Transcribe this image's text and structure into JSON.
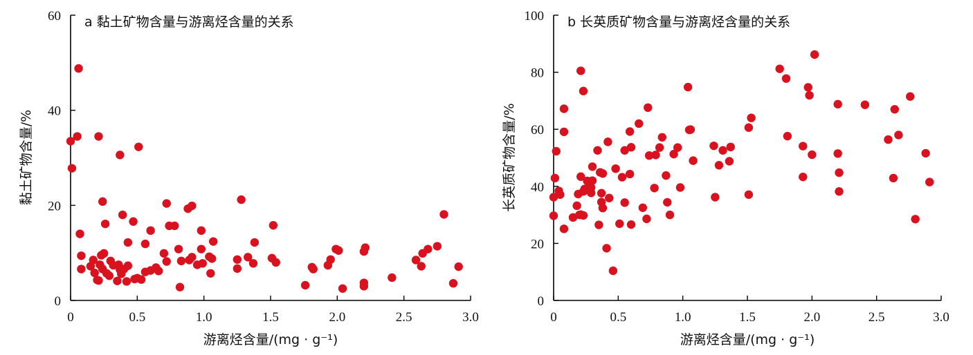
{
  "chart_data": [
    {
      "type": "scatter",
      "title": "a 黏土矿物含量与游离烃含量的关系",
      "xlabel": "游离烃含量/(mg · g⁻¹)",
      "ylabel": "黏土矿物含量/%",
      "xlim": [
        0,
        3.0
      ],
      "ylim": [
        0,
        60
      ],
      "xticks": [
        "0",
        "0.5",
        "1.0",
        "1.5",
        "2.0",
        "2.5",
        "3.0"
      ],
      "xtick_values": [
        0,
        0.5,
        1.0,
        1.5,
        2.0,
        2.5,
        3.0
      ],
      "yticks": [
        "0",
        "20",
        "40",
        "60"
      ],
      "ytick_values": [
        0,
        20,
        40,
        60
      ],
      "color": "#d9121f",
      "points": [
        [
          0.06,
          48.8
        ],
        [
          0.05,
          34.5
        ],
        [
          0.21,
          34.5
        ],
        [
          0.0,
          33.5
        ],
        [
          0.51,
          32.3
        ],
        [
          0.37,
          30.6
        ],
        [
          0.01,
          27.8
        ],
        [
          0.24,
          20.8
        ],
        [
          0.72,
          20.4
        ],
        [
          0.88,
          19.3
        ],
        [
          0.91,
          19.9
        ],
        [
          1.28,
          21.2
        ],
        [
          2.8,
          18.1
        ],
        [
          0.39,
          18.0
        ],
        [
          0.47,
          16.6
        ],
        [
          0.26,
          16.1
        ],
        [
          0.74,
          15.7
        ],
        [
          0.78,
          15.7
        ],
        [
          1.52,
          15.8
        ],
        [
          0.6,
          14.7
        ],
        [
          0.98,
          14.7
        ],
        [
          0.07,
          14.0
        ],
        [
          1.07,
          12.4
        ],
        [
          0.43,
          12.2
        ],
        [
          0.56,
          11.9
        ],
        [
          1.38,
          12.2
        ],
        [
          0.81,
          10.8
        ],
        [
          0.98,
          10.8
        ],
        [
          1.99,
          10.8
        ],
        [
          2.01,
          10.5
        ],
        [
          2.2,
          10.3
        ],
        [
          2.21,
          11.1
        ],
        [
          2.68,
          10.8
        ],
        [
          2.75,
          11.4
        ],
        [
          0.7,
          9.9
        ],
        [
          0.23,
          9.5
        ],
        [
          0.25,
          9.9
        ],
        [
          0.08,
          9.4
        ],
        [
          1.04,
          9.2
        ],
        [
          0.91,
          9.1
        ],
        [
          1.25,
          8.6
        ],
        [
          1.33,
          9.1
        ],
        [
          1.51,
          8.9
        ],
        [
          1.95,
          8.6
        ],
        [
          2.59,
          8.5
        ],
        [
          2.64,
          9.9
        ],
        [
          0.17,
          8.5
        ],
        [
          0.3,
          8.3
        ],
        [
          0.72,
          8.2
        ],
        [
          0.83,
          8.3
        ],
        [
          0.89,
          8.5
        ],
        [
          1.06,
          8.8
        ],
        [
          0.32,
          7.4
        ],
        [
          0.36,
          7.5
        ],
        [
          0.22,
          7.5
        ],
        [
          0.15,
          7.2
        ],
        [
          0.43,
          7.3
        ],
        [
          0.64,
          6.9
        ],
        [
          0.95,
          7.5
        ],
        [
          0.99,
          7.8
        ],
        [
          1.37,
          7.8
        ],
        [
          1.54,
          8.0
        ],
        [
          1.81,
          7.0
        ],
        [
          1.93,
          7.4
        ],
        [
          2.63,
          7.2
        ],
        [
          2.91,
          7.1
        ],
        [
          0.08,
          6.6
        ],
        [
          0.24,
          6.6
        ],
        [
          0.37,
          6.5
        ],
        [
          0.4,
          6.6
        ],
        [
          0.56,
          6.0
        ],
        [
          0.6,
          6.3
        ],
        [
          0.66,
          6.2
        ],
        [
          1.25,
          6.7
        ],
        [
          1.82,
          6.6
        ],
        [
          0.18,
          5.8
        ],
        [
          0.27,
          5.7
        ],
        [
          0.29,
          5.2
        ],
        [
          0.38,
          5.6
        ],
        [
          0.5,
          4.7
        ],
        [
          1.05,
          5.7
        ],
        [
          0.2,
          4.3
        ],
        [
          0.35,
          4.1
        ],
        [
          0.42,
          4.0
        ],
        [
          0.48,
          4.5
        ],
        [
          0.53,
          4.4
        ],
        [
          2.41,
          4.8
        ],
        [
          2.2,
          3.7
        ],
        [
          2.87,
          3.6
        ],
        [
          0.82,
          2.8
        ],
        [
          1.76,
          3.2
        ],
        [
          2.04,
          2.5
        ],
        [
          2.2,
          3.0
        ],
        [
          0.21,
          4.2
        ]
      ]
    },
    {
      "type": "scatter",
      "title": "b 长英质矿物含量与游离烃含量的关系",
      "xlabel": "游离烃含量/(mg · g⁻¹)",
      "ylabel": "长英质矿物含量/%",
      "xlim": [
        0,
        3.0
      ],
      "ylim": [
        0,
        100
      ],
      "xticks": [
        "0",
        "0.5",
        "1.0",
        "1.5",
        "2.0",
        "2.5",
        "3.0"
      ],
      "xtick_values": [
        0,
        0.5,
        1.0,
        1.5,
        2.0,
        2.5,
        3.0
      ],
      "yticks": [
        "0",
        "20",
        "40",
        "60",
        "80",
        "100"
      ],
      "ytick_values": [
        0,
        20,
        40,
        60,
        80,
        100
      ],
      "color": "#d9121f",
      "points": [
        [
          2.02,
          86.2
        ],
        [
          1.75,
          81.2
        ],
        [
          1.8,
          77.8
        ],
        [
          1.97,
          74.7
        ],
        [
          1.98,
          71.9
        ],
        [
          2.76,
          71.5
        ],
        [
          2.2,
          68.8
        ],
        [
          2.41,
          68.6
        ],
        [
          2.64,
          67.0
        ],
        [
          0.21,
          80.5
        ],
        [
          0.23,
          73.4
        ],
        [
          0.08,
          67.2
        ],
        [
          0.73,
          67.6
        ],
        [
          1.04,
          74.8
        ],
        [
          1.53,
          64.0
        ],
        [
          1.51,
          60.6
        ],
        [
          0.66,
          62.0
        ],
        [
          0.08,
          59.1
        ],
        [
          0.59,
          59.2
        ],
        [
          1.05,
          59.8
        ],
        [
          1.06,
          59.9
        ],
        [
          0.84,
          57.2
        ],
        [
          1.81,
          57.6
        ],
        [
          2.59,
          56.4
        ],
        [
          2.67,
          58.0
        ],
        [
          0.42,
          55.6
        ],
        [
          0.6,
          53.7
        ],
        [
          0.82,
          53.6
        ],
        [
          0.96,
          53.6
        ],
        [
          1.24,
          54.2
        ],
        [
          1.37,
          53.8
        ],
        [
          1.93,
          54.1
        ],
        [
          0.34,
          52.6
        ],
        [
          0.55,
          52.6
        ],
        [
          1.31,
          52.6
        ],
        [
          2.88,
          51.6
        ],
        [
          0.02,
          52.3
        ],
        [
          0.74,
          50.8
        ],
        [
          0.79,
          51.0
        ],
        [
          0.93,
          51.3
        ],
        [
          1.08,
          49.0
        ],
        [
          1.28,
          47.4
        ],
        [
          1.36,
          48.8
        ],
        [
          2.0,
          51.1
        ],
        [
          2.2,
          51.5
        ],
        [
          0.3,
          46.9
        ],
        [
          0.48,
          46.2
        ],
        [
          0.36,
          44.9
        ],
        [
          0.38,
          44.5
        ],
        [
          0.59,
          44.3
        ],
        [
          0.21,
          43.4
        ],
        [
          0.53,
          43.2
        ],
        [
          0.87,
          43.8
        ],
        [
          1.93,
          43.3
        ],
        [
          2.21,
          44.8
        ],
        [
          2.63,
          42.9
        ],
        [
          0.01,
          42.9
        ],
        [
          0.26,
          41.9
        ],
        [
          0.28,
          41.4
        ],
        [
          0.29,
          39.6
        ],
        [
          0.24,
          39.1
        ],
        [
          0.3,
          42.0
        ],
        [
          0.78,
          39.4
        ],
        [
          0.98,
          39.6
        ],
        [
          2.91,
          41.5
        ],
        [
          0.04,
          38.4
        ],
        [
          0.05,
          37.1
        ],
        [
          0.19,
          37.3
        ],
        [
          0.29,
          37.7
        ],
        [
          0.37,
          37.6
        ],
        [
          0.23,
          38.2
        ],
        [
          0.0,
          36.2
        ],
        [
          0.43,
          35.9
        ],
        [
          0.37,
          34.5
        ],
        [
          0.55,
          34.3
        ],
        [
          0.18,
          33.2
        ],
        [
          0.38,
          32.4
        ],
        [
          0.69,
          32.5
        ],
        [
          0.88,
          34.4
        ],
        [
          1.25,
          36.2
        ],
        [
          1.51,
          37.1
        ],
        [
          2.21,
          38.2
        ],
        [
          0.15,
          29.1
        ],
        [
          0.2,
          30.0
        ],
        [
          0.21,
          30.1
        ],
        [
          0.0,
          29.7
        ],
        [
          0.51,
          26.9
        ],
        [
          0.35,
          26.5
        ],
        [
          0.6,
          26.6
        ],
        [
          0.72,
          28.6
        ],
        [
          0.9,
          30.0
        ],
        [
          0.08,
          25.1
        ],
        [
          2.8,
          28.5
        ],
        [
          0.41,
          18.3
        ],
        [
          0.46,
          10.4
        ],
        [
          0.23,
          29.8
        ]
      ]
    }
  ]
}
